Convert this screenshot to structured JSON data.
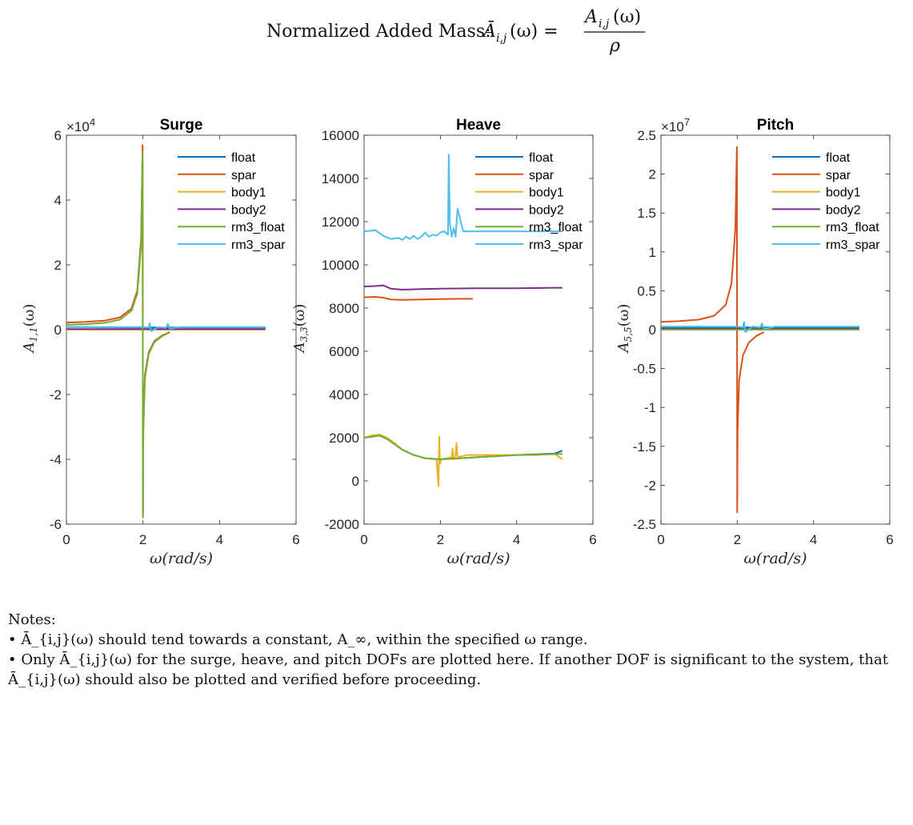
{
  "page": {
    "title_prefix": "Normalized Added Mass:",
    "title_lhs": "Ā",
    "title_lhs_sub": "i,j",
    "title_lhs_arg": "(ω) =",
    "title_num": "A",
    "title_num_sub": "i,j",
    "title_num_arg": "(ω)",
    "title_den": "ρ"
  },
  "notes": {
    "heading": "Notes:",
    "items": [
      "• Ā_{i,j}(ω) should tend towards a constant, A_∞, within the specified ω range.",
      "• Only Ā_{i,j}(ω) for the surge, heave, and pitch DOFs are plotted here. If another DOF is significant to the system, that Ā_{i,j}(ω) should also be plotted and verified before proceeding."
    ]
  },
  "colors": {
    "float": "#0072BD",
    "spar": "#D95319",
    "body1": "#EDB120",
    "body2": "#7E2F8E",
    "rm3_float": "#77AC30",
    "rm3_spar": "#4DBEEE"
  },
  "chart_data": [
    {
      "type": "line",
      "title": "Surge",
      "xlabel": "ω(rad/s)",
      "ylabel": "A_{1,1}(ω)",
      "exponent": "×10^4",
      "xlim": [
        0,
        6
      ],
      "ylim": [
        -60000,
        60000
      ],
      "xticks": [
        0,
        2,
        4,
        6
      ],
      "xtick_labels": [
        "0",
        "2",
        "4",
        "6"
      ],
      "yticks": [
        -60000,
        -40000,
        -20000,
        0,
        20000,
        40000,
        60000
      ],
      "ytick_labels": [
        "-6",
        "-4",
        "-2",
        "0",
        "2",
        "4",
        "6"
      ],
      "legend": "top-right",
      "series": [
        {
          "name": "float",
          "color": "#0072BD",
          "x": [
            0,
            0.5,
            1.0,
            1.5,
            2.0,
            2.5,
            3.0,
            4.0,
            5.2
          ],
          "y": [
            800,
            800,
            750,
            700,
            700,
            650,
            700,
            700,
            700
          ]
        },
        {
          "name": "spar",
          "color": "#D95319",
          "x": [
            0,
            0.5,
            1.0,
            1.4,
            1.7,
            1.85,
            1.95,
            1.99,
            2.0,
            2.01,
            2.05,
            2.15,
            2.3,
            2.5,
            2.7
          ],
          "y": [
            2200,
            2400,
            2800,
            3800,
            6500,
            12000,
            28000,
            57000,
            -57000,
            -30000,
            -14000,
            -7000,
            -3500,
            -1800,
            -800
          ]
        },
        {
          "name": "body1",
          "color": "#EDB120",
          "x": [
            0,
            1,
            2,
            3,
            4,
            5.2
          ],
          "y": [
            0,
            0,
            0,
            0,
            0,
            0
          ]
        },
        {
          "name": "body2",
          "color": "#7E2F8E",
          "x": [
            0,
            1,
            2,
            3,
            4,
            5.2
          ],
          "y": [
            200,
            200,
            200,
            200,
            200,
            200
          ]
        },
        {
          "name": "rm3_float",
          "color": "#77AC30",
          "x": [
            0,
            0.5,
            1.0,
            1.4,
            1.7,
            1.85,
            1.95,
            1.99,
            2.0,
            2.01,
            2.05,
            2.15,
            2.3,
            2.5,
            2.65
          ],
          "y": [
            1500,
            1700,
            2100,
            3100,
            5800,
            11000,
            26000,
            55000,
            -58000,
            -32000,
            -15000,
            -7500,
            -3800,
            -2000,
            -1100
          ]
        },
        {
          "name": "rm3_spar",
          "color": "#4DBEEE",
          "x": [
            0,
            0.5,
            1.0,
            1.5,
            2.0,
            2.15,
            2.18,
            2.21,
            2.4,
            2.6,
            2.65,
            2.7,
            3.0,
            4.0,
            5.2
          ],
          "y": [
            800,
            800,
            800,
            800,
            800,
            700,
            2000,
            -500,
            800,
            600,
            1800,
            300,
            800,
            800,
            800
          ]
        }
      ]
    },
    {
      "type": "line",
      "title": "Heave",
      "xlabel": "ω(rad/s)",
      "ylabel": "A_{3,3}(ω)",
      "exponent": "",
      "xlim": [
        0,
        6
      ],
      "ylim": [
        -2000,
        16000
      ],
      "xticks": [
        0,
        2,
        4,
        6
      ],
      "xtick_labels": [
        "0",
        "2",
        "4",
        "6"
      ],
      "yticks": [
        -2000,
        0,
        2000,
        4000,
        6000,
        8000,
        10000,
        12000,
        14000,
        16000
      ],
      "ytick_labels": [
        "-2000",
        "0",
        "2000",
        "4000",
        "6000",
        "8000",
        "10000",
        "12000",
        "14000",
        "16000"
      ],
      "legend": "top-right",
      "series": [
        {
          "name": "float",
          "color": "#0072BD",
          "x": [
            0,
            0.2,
            0.4,
            0.6,
            0.8,
            1.0,
            1.3,
            1.6,
            2.0,
            2.5,
            3.0,
            3.5,
            4.0,
            4.5,
            5.0,
            5.2
          ],
          "y": [
            2000,
            2050,
            2100,
            1950,
            1700,
            1450,
            1200,
            1050,
            1000,
            1050,
            1100,
            1150,
            1200,
            1230,
            1270,
            1400
          ]
        },
        {
          "name": "spar",
          "color": "#D95319",
          "x": [
            0,
            0.3,
            0.5,
            0.7,
            1.0,
            1.5,
            2.0,
            2.5,
            2.85
          ],
          "y": [
            8500,
            8520,
            8480,
            8400,
            8380,
            8400,
            8420,
            8430,
            8430
          ]
        },
        {
          "name": "body1",
          "color": "#EDB120",
          "x": [
            0,
            0.2,
            0.4,
            0.6,
            0.8,
            1.0,
            1.3,
            1.6,
            1.9,
            1.95,
            1.97,
            1.99,
            2.02,
            2.3,
            2.32,
            2.35,
            2.4,
            2.42,
            2.45,
            2.7,
            3.0,
            3.5,
            4.0,
            4.5,
            5.0,
            5.2
          ],
          "y": [
            2000,
            2100,
            2150,
            2000,
            1750,
            1450,
            1200,
            1050,
            1000,
            -250,
            2050,
            800,
            1000,
            1100,
            1500,
            1000,
            1200,
            1750,
            1100,
            1200,
            1200,
            1200,
            1200,
            1200,
            1250,
            1000
          ]
        },
        {
          "name": "body2",
          "color": "#7E2F8E",
          "x": [
            0,
            0.3,
            0.5,
            0.7,
            1.0,
            1.5,
            2.0,
            3.0,
            4.0,
            5.0,
            5.2
          ],
          "y": [
            9000,
            9020,
            9050,
            8900,
            8850,
            8880,
            8900,
            8920,
            8920,
            8940,
            8940
          ]
        },
        {
          "name": "rm3_float",
          "color": "#77AC30",
          "x": [
            0,
            0.2,
            0.4,
            0.6,
            0.8,
            1.0,
            1.3,
            1.6,
            2.0,
            2.5,
            3.0,
            3.5,
            4.0,
            4.5,
            5.0,
            5.2
          ],
          "y": [
            2000,
            2050,
            2100,
            1950,
            1700,
            1450,
            1200,
            1050,
            1000,
            1050,
            1100,
            1150,
            1200,
            1220,
            1240,
            1250
          ]
        },
        {
          "name": "rm3_spar",
          "color": "#4DBEEE",
          "x": [
            0,
            0.3,
            0.5,
            0.7,
            0.9,
            1.0,
            1.1,
            1.2,
            1.3,
            1.4,
            1.5,
            1.6,
            1.7,
            1.8,
            1.9,
            2.0,
            2.1,
            2.2,
            2.22,
            2.25,
            2.3,
            2.35,
            2.4,
            2.45,
            2.6,
            3.0,
            3.5,
            4.0,
            4.5,
            5.2
          ],
          "y": [
            11550,
            11600,
            11350,
            11200,
            11250,
            11150,
            11300,
            11200,
            11350,
            11200,
            11300,
            11500,
            11300,
            11400,
            11350,
            11500,
            11550,
            11400,
            15100,
            11900,
            11300,
            11700,
            11300,
            12600,
            11550,
            11550,
            11550,
            11550,
            11550,
            11550
          ]
        }
      ]
    },
    {
      "type": "line",
      "title": "Pitch",
      "xlabel": "ω(rad/s)",
      "ylabel": "A_{5,5}(ω)",
      "exponent": "×10^7",
      "xlim": [
        0,
        6
      ],
      "ylim": [
        -25000000,
        25000000
      ],
      "xticks": [
        0,
        2,
        4,
        6
      ],
      "xtick_labels": [
        "0",
        "2",
        "4",
        "6"
      ],
      "yticks": [
        -25000000,
        -20000000,
        -15000000,
        -10000000,
        -5000000,
        0,
        5000000,
        10000000,
        15000000,
        20000000,
        25000000
      ],
      "ytick_labels": [
        "-2.5",
        "-2",
        "-1.5",
        "-1",
        "-0.5",
        "0",
        "0.5",
        "1",
        "1.5",
        "2",
        "2.5"
      ],
      "legend": "top-right",
      "series": [
        {
          "name": "float",
          "color": "#0072BD",
          "x": [
            0,
            1,
            2,
            3,
            4,
            5.2
          ],
          "y": [
            300000,
            300000,
            300000,
            300000,
            300000,
            300000
          ]
        },
        {
          "name": "spar",
          "color": "#D95319",
          "x": [
            0,
            0.5,
            1.0,
            1.4,
            1.7,
            1.85,
            1.95,
            1.99,
            2.0,
            2.01,
            2.05,
            2.15,
            2.3,
            2.5,
            2.7
          ],
          "y": [
            1000000,
            1100000,
            1300000,
            1800000,
            3200000,
            6000000,
            13000000,
            23500000,
            -23500000,
            -13000000,
            -6500000,
            -3300000,
            -1700000,
            -800000,
            -300000
          ]
        },
        {
          "name": "body1",
          "color": "#EDB120",
          "x": [
            0,
            1,
            2,
            3,
            4,
            5.2
          ],
          "y": [
            0,
            0,
            0,
            0,
            0,
            0
          ]
        },
        {
          "name": "body2",
          "color": "#7E2F8E",
          "x": [
            0,
            1,
            2,
            3,
            4,
            5.2
          ],
          "y": [
            100000,
            100000,
            100000,
            100000,
            100000,
            100000
          ]
        },
        {
          "name": "rm3_float",
          "color": "#77AC30",
          "x": [
            0,
            1,
            2,
            3,
            4,
            5.2
          ],
          "y": [
            0,
            0,
            0,
            0,
            0,
            0
          ]
        },
        {
          "name": "rm3_spar",
          "color": "#4DBEEE",
          "x": [
            0,
            1.0,
            2.0,
            2.15,
            2.18,
            2.21,
            2.4,
            2.6,
            2.65,
            2.7,
            3.0,
            4.0,
            5.2
          ],
          "y": [
            400000,
            400000,
            400000,
            300000,
            1000000,
            -300000,
            400000,
            300000,
            800000,
            100000,
            400000,
            400000,
            400000
          ]
        }
      ]
    }
  ]
}
